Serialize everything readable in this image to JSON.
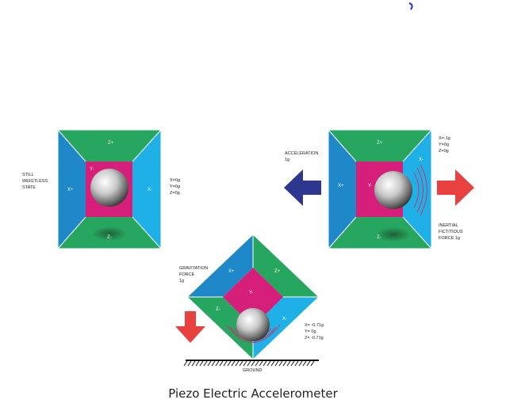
{
  "caption": "Piezo Electric Accelerometer",
  "colors": {
    "top_face": "#27a660",
    "left_face": "#1e88c9",
    "right_face": "#1eb0e6",
    "center_face": "#d61f7a",
    "ground_shadow": "#1c5e33",
    "accel_arrow": "#2e3790",
    "force_arrow": "#e8413f"
  },
  "still": {
    "state_label": [
      "STILL",
      "WEIGTLESS",
      "STATE"
    ],
    "face_top": "Z+",
    "face_bottom": "Z-",
    "face_left": "X+",
    "face_right": "X-",
    "face_center": "Y-",
    "readings": [
      "X=0g",
      "Y=0g",
      "Z=0g"
    ]
  },
  "accel": {
    "accel_label": [
      "ACCELERATION",
      "1g"
    ],
    "face_top": "Z+",
    "face_bottom": "Z-",
    "face_left": "X+",
    "face_right": "X-",
    "face_center": "Y-",
    "readings": [
      "X=-1g",
      "Y=0g",
      "Z=0g"
    ],
    "inertial_label": [
      "INERTIAL",
      "FICTITIOUS",
      "FORCE 1g"
    ]
  },
  "gravity": {
    "force_label": [
      "GRAVITATION",
      "FORCE",
      "1g"
    ],
    "face_top_left": "X+",
    "face_top_right": "Z+",
    "face_bottom_left": "Z-",
    "face_bottom_right": "X-",
    "face_center": "Y-",
    "readings": [
      "X= -0.71g",
      "Y= 0g",
      "Z= -0.71g"
    ],
    "ground_label": "GROUND"
  }
}
